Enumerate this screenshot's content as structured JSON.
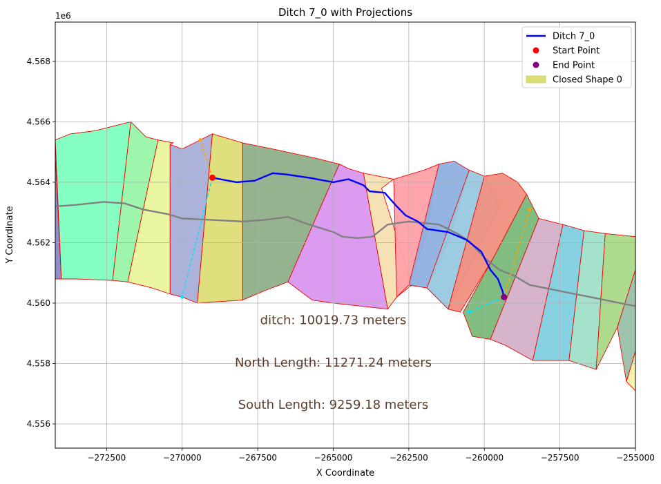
{
  "chart_data": {
    "type": "map",
    "title": "Ditch 7_0 with Projections",
    "xlabel": "X Coordinate",
    "ylabel": "Y Coordinate",
    "y_offset_label": "1e6",
    "xlim": [
      -274200,
      -255000
    ],
    "ylim": [
      4555200,
      4569300
    ],
    "grid": true,
    "x_ticks": [
      {
        "value": -272500,
        "label": "−272500"
      },
      {
        "value": -270000,
        "label": "−270000"
      },
      {
        "value": -267500,
        "label": "−267500"
      },
      {
        "value": -265000,
        "label": "−265000"
      },
      {
        "value": -262500,
        "label": "−262500"
      },
      {
        "value": -260000,
        "label": "−260000"
      },
      {
        "value": -257500,
        "label": "−257500"
      },
      {
        "value": -255000,
        "label": "−255000"
      }
    ],
    "y_ticks": [
      {
        "value": 4556000,
        "label": "4.556"
      },
      {
        "value": 4558000,
        "label": "4.558"
      },
      {
        "value": 4560000,
        "label": "4.560"
      },
      {
        "value": 4562000,
        "label": "4.562"
      },
      {
        "value": 4564000,
        "label": "4.564"
      },
      {
        "value": 4566000,
        "label": "4.566"
      },
      {
        "value": 4568000,
        "label": "4.568"
      }
    ],
    "legend": {
      "placement": "top-right",
      "entries": [
        {
          "label": "Ditch 7_0",
          "kind": "line",
          "color": "#0000ff"
        },
        {
          "label": "Start Point",
          "kind": "dot",
          "color": "#ff0000"
        },
        {
          "label": "End Point",
          "kind": "dot",
          "color": "#800080"
        },
        {
          "label": "Closed Shape 0",
          "kind": "patch",
          "color": "#dddd77"
        }
      ]
    },
    "annotations": [
      {
        "text": "ditch: 10019.73 meters",
        "x": -265000,
        "y": 4559300
      },
      {
        "text": "North Length: 11271.24 meters",
        "x": -265000,
        "y": 4557900
      },
      {
        "text": "South Length: 9259.18 meters",
        "x": -265000,
        "y": 4556500
      }
    ],
    "annotation_color": "#5c3d2e",
    "ditch": {
      "name": "Ditch 7_0",
      "color": "#0000ff",
      "points": [
        [
          -269000,
          4564150
        ],
        [
          -268200,
          4564000
        ],
        [
          -267600,
          4564050
        ],
        [
          -267000,
          4564300
        ],
        [
          -266500,
          4564250
        ],
        [
          -265800,
          4564150
        ],
        [
          -265000,
          4564000
        ],
        [
          -264500,
          4564100
        ],
        [
          -264000,
          4563900
        ],
        [
          -263800,
          4563700
        ],
        [
          -263300,
          4563650
        ],
        [
          -262900,
          4563200
        ],
        [
          -262600,
          4562900
        ],
        [
          -262200,
          4562700
        ],
        [
          -261900,
          4562450
        ],
        [
          -261200,
          4562350
        ],
        [
          -260600,
          4562100
        ],
        [
          -260100,
          4561700
        ],
        [
          -259800,
          4561100
        ],
        [
          -259550,
          4560800
        ],
        [
          -259400,
          4560400
        ],
        [
          -259350,
          4560200
        ]
      ]
    },
    "start_point": {
      "x": -269000,
      "y": 4564150,
      "color": "#ff0000"
    },
    "end_point": {
      "x": -259350,
      "y": 4560200,
      "color": "#800080"
    },
    "centerline": {
      "color": "#808080",
      "points": [
        [
          -274200,
          4563200
        ],
        [
          -273500,
          4563250
        ],
        [
          -272600,
          4563350
        ],
        [
          -271900,
          4563300
        ],
        [
          -271300,
          4563100
        ],
        [
          -270500,
          4562950
        ],
        [
          -270000,
          4562800
        ],
        [
          -269000,
          4562750
        ],
        [
          -268000,
          4562700
        ],
        [
          -267300,
          4562750
        ],
        [
          -266500,
          4562850
        ],
        [
          -265800,
          4562600
        ],
        [
          -265000,
          4562350
        ],
        [
          -264700,
          4562200
        ],
        [
          -264200,
          4562150
        ],
        [
          -263700,
          4562200
        ],
        [
          -263200,
          4562600
        ],
        [
          -262500,
          4562700
        ],
        [
          -261500,
          4562600
        ],
        [
          -260900,
          4562300
        ],
        [
          -260500,
          4562050
        ],
        [
          -260000,
          4561500
        ],
        [
          -259500,
          4561100
        ],
        [
          -259000,
          4560900
        ],
        [
          -258500,
          4560600
        ],
        [
          -257500,
          4560400
        ],
        [
          -256500,
          4560200
        ],
        [
          -255500,
          4560000
        ],
        [
          -255000,
          4559900
        ]
      ]
    },
    "projection_north": {
      "color": "#ffa500",
      "segments": [
        [
          [
            -269000,
            4564150
          ],
          [
            -269400,
            4565400
          ]
        ],
        [
          [
            -259350,
            4560200
          ],
          [
            -258500,
            4563100
          ]
        ]
      ]
    },
    "projection_south": {
      "color": "#00e5ff",
      "segments": [
        [
          [
            -269000,
            4564150
          ],
          [
            -270000,
            4560200
          ]
        ],
        [
          [
            -259350,
            4560200
          ],
          [
            -260500,
            4559700
          ]
        ]
      ]
    },
    "shapes": [
      {
        "name": "Closed Shape 0",
        "color": "#dddd77",
        "points": [
          [
            -269000,
            4565600
          ],
          [
            -268000,
            4565300
          ],
          [
            -268000,
            4560100
          ],
          [
            -269500,
            4560000
          ]
        ]
      },
      {
        "color": "#8888cc",
        "points": [
          [
            -274200,
            4564900
          ],
          [
            -274000,
            4560800
          ],
          [
            -274200,
            4560800
          ]
        ]
      },
      {
        "color": "#7fffbf",
        "points": [
          [
            -274200,
            4565400
          ],
          [
            -273700,
            4565600
          ],
          [
            -272900,
            4565700
          ],
          [
            -271700,
            4566000
          ],
          [
            -272300,
            4560750
          ],
          [
            -273500,
            4560800
          ],
          [
            -274000,
            4560800
          ]
        ]
      },
      {
        "color": "#98f5a8",
        "points": [
          [
            -271700,
            4566000
          ],
          [
            -271200,
            4565500
          ],
          [
            -270800,
            4565400
          ],
          [
            -271800,
            4560700
          ],
          [
            -272300,
            4560750
          ]
        ]
      },
      {
        "color": "#e8f59a",
        "points": [
          [
            -270800,
            4565400
          ],
          [
            -270300,
            4565300
          ],
          [
            -270400,
            4565250
          ],
          [
            -270400,
            4560300
          ],
          [
            -271000,
            4560500
          ],
          [
            -271800,
            4560700
          ]
        ]
      },
      {
        "color": "#a8aed8",
        "points": [
          [
            -270400,
            4565250
          ],
          [
            -270000,
            4565100
          ],
          [
            -269600,
            4565300
          ],
          [
            -269000,
            4565600
          ],
          [
            -269500,
            4560000
          ],
          [
            -270000,
            4560200
          ],
          [
            -270400,
            4560300
          ]
        ]
      },
      {
        "color": "#8faf88",
        "points": [
          [
            -268000,
            4565300
          ],
          [
            -267000,
            4565100
          ],
          [
            -265600,
            4564800
          ],
          [
            -264800,
            4564600
          ],
          [
            -266500,
            4560700
          ],
          [
            -267300,
            4560400
          ],
          [
            -268000,
            4560100
          ]
        ]
      },
      {
        "color": "#d996f0",
        "points": [
          [
            -264800,
            4564600
          ],
          [
            -264500,
            4564450
          ],
          [
            -264000,
            4564300
          ],
          [
            -263200,
            4559800
          ],
          [
            -265000,
            4560000
          ],
          [
            -265700,
            4560100
          ],
          [
            -266500,
            4560700
          ]
        ]
      },
      {
        "color": "#f5dfb0",
        "points": [
          [
            -264000,
            4564300
          ],
          [
            -263000,
            4564100
          ],
          [
            -263400,
            4563800
          ],
          [
            -262400,
            4560600
          ],
          [
            -262900,
            4560200
          ],
          [
            -263200,
            4559800
          ]
        ]
      },
      {
        "color": "#ffa0a8",
        "points": [
          [
            -263000,
            4564100
          ],
          [
            -262000,
            4564400
          ],
          [
            -261500,
            4564600
          ],
          [
            -262000,
            4562000
          ],
          [
            -262500,
            4560600
          ],
          [
            -262900,
            4560200
          ]
        ]
      },
      {
        "color": "#90b0e0",
        "points": [
          [
            -261500,
            4564600
          ],
          [
            -261000,
            4564700
          ],
          [
            -260500,
            4564400
          ],
          [
            -261200,
            4562000
          ],
          [
            -261900,
            4560500
          ],
          [
            -262500,
            4560600
          ]
        ]
      },
      {
        "color": "#98c8e0",
        "points": [
          [
            -260500,
            4564400
          ],
          [
            -260000,
            4564200
          ],
          [
            -259500,
            4563200
          ],
          [
            -261200,
            4559800
          ],
          [
            -261900,
            4560500
          ]
        ]
      },
      {
        "color": "#f09080",
        "points": [
          [
            -260000,
            4564200
          ],
          [
            -259400,
            4564300
          ],
          [
            -258900,
            4564000
          ],
          [
            -258600,
            4563600
          ],
          [
            -259700,
            4561500
          ],
          [
            -260800,
            4559700
          ],
          [
            -261200,
            4559800
          ]
        ]
      },
      {
        "color": "#7ab87a",
        "points": [
          [
            -258600,
            4563600
          ],
          [
            -258200,
            4562800
          ],
          [
            -259800,
            4558800
          ],
          [
            -260400,
            4558900
          ],
          [
            -260700,
            4559700
          ],
          [
            -259700,
            4561500
          ]
        ]
      },
      {
        "color": "#d4b0c8",
        "points": [
          [
            -258200,
            4562800
          ],
          [
            -257400,
            4562600
          ],
          [
            -258400,
            4558100
          ],
          [
            -259300,
            4558600
          ],
          [
            -259800,
            4558800
          ]
        ]
      },
      {
        "color": "#80d0e0",
        "points": [
          [
            -257400,
            4562600
          ],
          [
            -256700,
            4562400
          ],
          [
            -257200,
            4558100
          ],
          [
            -258400,
            4558100
          ]
        ]
      },
      {
        "color": "#a0e0c8",
        "points": [
          [
            -256700,
            4562400
          ],
          [
            -256000,
            4562300
          ],
          [
            -256300,
            4557800
          ],
          [
            -257200,
            4558100
          ]
        ]
      },
      {
        "color": "#aad888",
        "points": [
          [
            -256000,
            4562300
          ],
          [
            -255000,
            4562200
          ],
          [
            -255000,
            4561100
          ],
          [
            -255600,
            4559200
          ],
          [
            -256300,
            4557800
          ]
        ]
      },
      {
        "color": "#98c0a8",
        "points": [
          [
            -255000,
            4561100
          ],
          [
            -255000,
            4558400
          ],
          [
            -255300,
            4557400
          ],
          [
            -255600,
            4559200
          ]
        ]
      },
      {
        "color": "#f8f0a8",
        "points": [
          [
            -255000,
            4558400
          ],
          [
            -255000,
            4557100
          ],
          [
            -255300,
            4557400
          ]
        ]
      }
    ]
  }
}
